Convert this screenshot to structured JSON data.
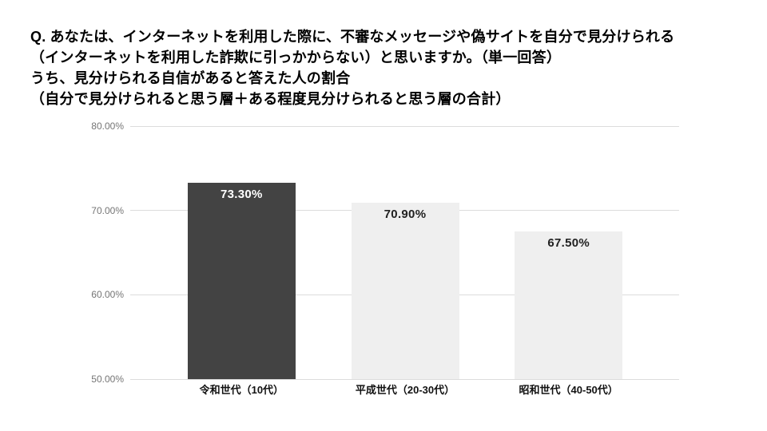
{
  "title": {
    "lines": [
      "Q. あなたは、インターネットを利用した際に、不審なメッセージや偽サイトを自分で見分けられる",
      "（インターネットを利用した詐欺に引っかからない）と思いますか。（単一回答）",
      "うち、見分けられる自信があると答えた人の割合",
      "（自分で見分けられると思う層＋ある程度見分けられると思う層の合計）"
    ]
  },
  "chart_data": {
    "type": "bar",
    "title": "",
    "xlabel": "",
    "ylabel": "",
    "categories": [
      "令和世代（10代）",
      "平成世代（20-30代）",
      "昭和世代（40-50代）"
    ],
    "values": [
      73.3,
      70.9,
      67.5
    ],
    "value_labels": [
      "73.30%",
      "70.90%",
      "67.50%"
    ],
    "bar_colors": [
      "#434343",
      "#efefef",
      "#efefef"
    ],
    "value_label_colors": [
      "#ffffff",
      "#212121",
      "#212121"
    ],
    "ylim": [
      50,
      80
    ],
    "yticks": [
      {
        "value": 80,
        "label": "80.00%"
      },
      {
        "value": 70,
        "label": "70.00%"
      },
      {
        "value": 60,
        "label": "60.00%"
      },
      {
        "value": 50,
        "label": "50.00%"
      }
    ],
    "grid": true,
    "legend_position": "none"
  },
  "colors": {
    "background": "#ffffff",
    "gridline": "#dcdcdc",
    "y_tick_label": "#757575",
    "category_label": "#111111",
    "title_text": "#000000"
  }
}
